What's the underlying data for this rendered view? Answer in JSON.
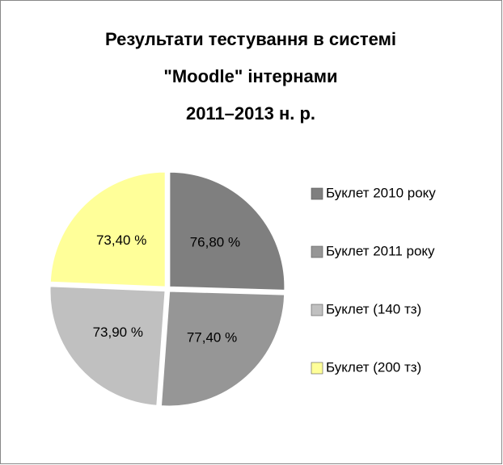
{
  "chart_data": {
    "type": "pie",
    "title": [
      "Результати тестування в системі",
      "\"Moodle\" інтернами",
      "2011–2013 н. р."
    ],
    "categories": [
      "Буклет 2010 року",
      "Буклет 2011 року",
      "Буклет (140 тз)",
      "Буклет (200 тз)"
    ],
    "values": [
      76.8,
      77.4,
      73.9,
      73.4
    ],
    "value_labels": [
      "76,80 %",
      "77,40 %",
      "73,90 %",
      "73,40 %"
    ],
    "colors": [
      "#7f7f7f",
      "#969696",
      "#c0c0c0",
      "#ffff99"
    ],
    "legend": "right"
  }
}
